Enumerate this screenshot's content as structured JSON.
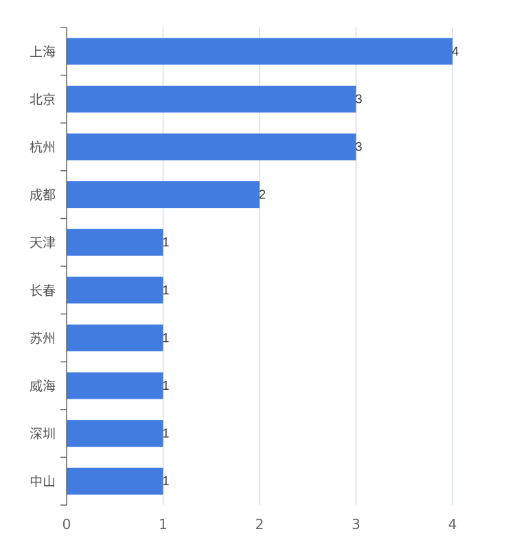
{
  "chart_data": {
    "type": "bar",
    "orientation": "horizontal",
    "categories": [
      "上海",
      "北京",
      "杭州",
      "成都",
      "天津",
      "长春",
      "苏州",
      "威海",
      "深圳",
      "中山"
    ],
    "values": [
      4,
      3,
      3,
      2,
      1,
      1,
      1,
      1,
      1,
      1
    ],
    "xlim": [
      0,
      4
    ],
    "x_ticks": [
      "0",
      "1",
      "2",
      "3",
      "4"
    ],
    "grid": true,
    "data_labels": true,
    "legend": "none"
  },
  "colors": {
    "bar": "#437ce0",
    "grid": "#d5dee8",
    "axis": "#666666"
  }
}
